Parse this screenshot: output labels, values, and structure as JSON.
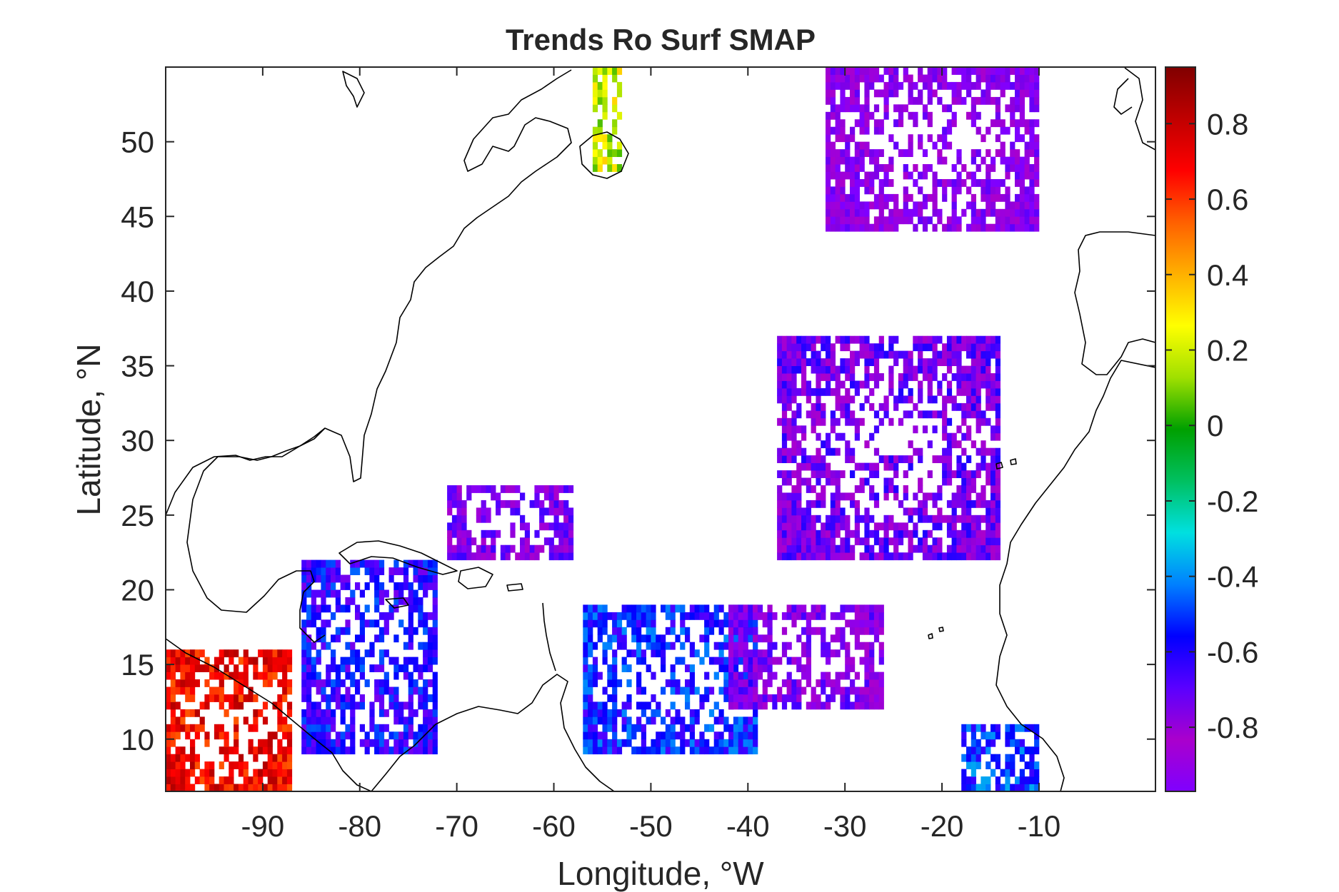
{
  "title": "Trends Ro Surf SMAP",
  "chart_data": {
    "type": "heatmap",
    "title": "Trends Ro Surf SMAP",
    "xlabel": "Longitude, °W",
    "ylabel": "Latitude, °N",
    "xlim": [
      -100,
      2
    ],
    "ylim": [
      6.5,
      55
    ],
    "x_ticks": [
      -90,
      -80,
      -70,
      -60,
      -50,
      -40,
      -30,
      -20,
      -10
    ],
    "y_ticks": [
      10,
      15,
      20,
      25,
      30,
      35,
      40,
      45,
      50
    ],
    "colorbar": {
      "limits": [
        -0.97,
        0.95
      ],
      "ticks": [
        0.8,
        0.6,
        0.4,
        0.2,
        0,
        -0.2,
        -0.4,
        -0.6,
        -0.8
      ],
      "colormap": [
        "#7f00ff",
        "#aa00cc",
        "#5a00ff",
        "#0000ff",
        "#0080ff",
        "#00e0e0",
        "#00c060",
        "#00a000",
        "#a0e000",
        "#ffff00",
        "#ffb000",
        "#ff6000",
        "#ff0000",
        "#c00000",
        "#800000"
      ]
    },
    "regions": [
      {
        "lon": [
          -100,
          -87
        ],
        "lat": [
          6.5,
          16
        ],
        "value": 0.7
      },
      {
        "lon": [
          -86,
          -72
        ],
        "lat": [
          9,
          22
        ],
        "value": -0.6
      },
      {
        "lon": [
          -71,
          -58
        ],
        "lat": [
          22,
          27
        ],
        "value": -0.8
      },
      {
        "lon": [
          -57,
          -39
        ],
        "lat": [
          9,
          19
        ],
        "value": -0.55
      },
      {
        "lon": [
          -37,
          -14
        ],
        "lat": [
          22,
          37
        ],
        "value": -0.75
      },
      {
        "lon": [
          -42,
          -26
        ],
        "lat": [
          12,
          19
        ],
        "value": -0.8
      },
      {
        "lon": [
          -18,
          -10
        ],
        "lat": [
          6.5,
          11
        ],
        "value": -0.5
      },
      {
        "lon": [
          -32,
          -10
        ],
        "lat": [
          44,
          55
        ],
        "value": -0.85
      },
      {
        "lon": [
          -56,
          -53
        ],
        "lat": [
          48,
          55
        ],
        "value": 0.2
      }
    ],
    "grid": false,
    "legend": "colorbar-right"
  }
}
